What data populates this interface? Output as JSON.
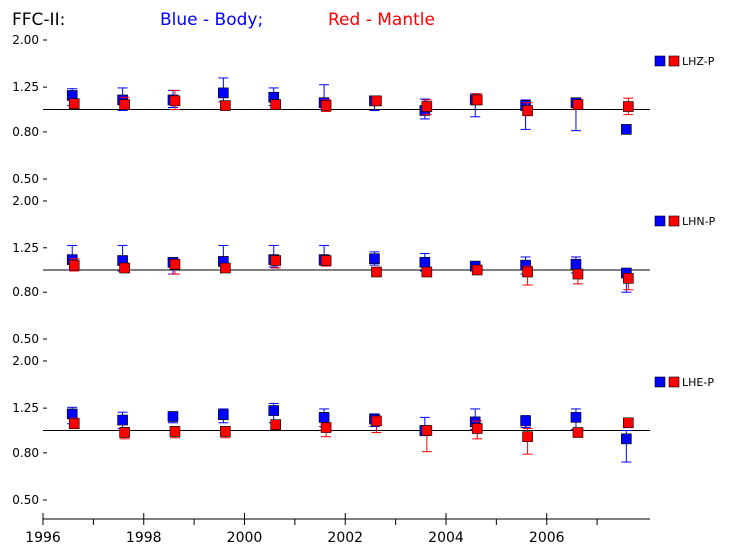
{
  "title": {
    "prefix": "FFC-II:",
    "blue_text": "Blue  -  Body;",
    "red_text": "Red  -  Mantle"
  },
  "colors": {
    "blue": "#0000ff",
    "red": "#ff0000",
    "line": "#000000"
  },
  "chart_data": [
    {
      "type": "scatter",
      "legend_label": "LHZ-P",
      "y_ticks": [
        "2.00",
        "1.25",
        "0.80",
        "0.50"
      ],
      "y_tick_values": [
        2.0,
        1.25,
        0.8,
        0.5
      ],
      "ylim": [
        0.45,
        2.1
      ],
      "log_scale": true,
      "reference": 1.0,
      "series": [
        {
          "name": "Body",
          "color": "blue",
          "points": [
            {
              "x": 1996.6,
              "y": 1.15,
              "lo": 1.04,
              "hi": 1.23
            },
            {
              "x": 1997.6,
              "y": 1.1,
              "lo": 0.99,
              "hi": 1.24
            },
            {
              "x": 1998.6,
              "y": 1.1,
              "lo": 1.02,
              "hi": 1.21
            },
            {
              "x": 1999.6,
              "y": 1.18,
              "lo": 1.08,
              "hi": 1.37
            },
            {
              "x": 2000.6,
              "y": 1.13,
              "lo": 1.04,
              "hi": 1.24
            },
            {
              "x": 2001.6,
              "y": 1.07,
              "lo": 1.0,
              "hi": 1.28
            },
            {
              "x": 2002.6,
              "y": 1.09,
              "lo": 0.99,
              "hi": 1.12
            },
            {
              "x": 2003.6,
              "y": 0.99,
              "lo": 0.91,
              "hi": 1.11
            },
            {
              "x": 2004.6,
              "y": 1.1,
              "lo": 0.93,
              "hi": 1.17
            },
            {
              "x": 2005.6,
              "y": 1.04,
              "lo": 0.82,
              "hi": 1.1
            },
            {
              "x": 2006.6,
              "y": 1.07,
              "lo": 0.81,
              "hi": 1.11
            },
            {
              "x": 2007.6,
              "y": 0.82,
              "lo": 0.8,
              "hi": 0.84
            }
          ]
        },
        {
          "name": "Mantle",
          "color": "red",
          "points": [
            {
              "x": 1996.6,
              "y": 1.06,
              "lo": 1.03,
              "hi": 1.1
            },
            {
              "x": 1997.6,
              "y": 1.05,
              "lo": 1.01,
              "hi": 1.13
            },
            {
              "x": 1998.6,
              "y": 1.09,
              "lo": 1.0,
              "hi": 1.21
            },
            {
              "x": 1999.6,
              "y": 1.04,
              "lo": 1.02,
              "hi": 1.07
            },
            {
              "x": 2000.6,
              "y": 1.05,
              "lo": 1.02,
              "hi": 1.1
            },
            {
              "x": 2001.6,
              "y": 1.04,
              "lo": 0.98,
              "hi": 1.1
            },
            {
              "x": 2002.6,
              "y": 1.09,
              "lo": 1.05,
              "hi": 1.12
            },
            {
              "x": 2003.6,
              "y": 1.03,
              "lo": 0.95,
              "hi": 1.1
            },
            {
              "x": 2004.6,
              "y": 1.1,
              "lo": 1.05,
              "hi": 1.17
            },
            {
              "x": 2005.6,
              "y": 0.99,
              "lo": 0.94,
              "hi": 1.07
            },
            {
              "x": 2006.6,
              "y": 1.05,
              "lo": 1.0,
              "hi": 1.1
            },
            {
              "x": 2007.6,
              "y": 1.03,
              "lo": 0.95,
              "hi": 1.12
            }
          ]
        }
      ]
    },
    {
      "type": "scatter",
      "legend_label": "LHN-P",
      "y_ticks": [
        "2.00",
        "1.25",
        "0.80",
        "0.50"
      ],
      "y_tick_values": [
        2.0,
        1.25,
        0.8,
        0.5
      ],
      "ylim": [
        0.45,
        2.1
      ],
      "log_scale": true,
      "reference": 1.0,
      "series": [
        {
          "name": "Body",
          "color": "blue",
          "points": [
            {
              "x": 1996.6,
              "y": 1.11,
              "lo": 1.0,
              "hi": 1.28
            },
            {
              "x": 1997.6,
              "y": 1.1,
              "lo": 0.99,
              "hi": 1.28
            },
            {
              "x": 1998.6,
              "y": 1.08,
              "lo": 0.96,
              "hi": 1.11
            },
            {
              "x": 1999.6,
              "y": 1.09,
              "lo": 1.0,
              "hi": 1.28
            },
            {
              "x": 2000.6,
              "y": 1.11,
              "lo": 1.03,
              "hi": 1.28
            },
            {
              "x": 2001.6,
              "y": 1.11,
              "lo": 1.05,
              "hi": 1.28
            },
            {
              "x": 2002.6,
              "y": 1.12,
              "lo": 1.05,
              "hi": 1.2
            },
            {
              "x": 2003.6,
              "y": 1.08,
              "lo": 0.99,
              "hi": 1.18
            },
            {
              "x": 2004.6,
              "y": 1.04,
              "lo": 1.01,
              "hi": 1.07
            },
            {
              "x": 2005.6,
              "y": 1.05,
              "lo": 0.96,
              "hi": 1.14
            },
            {
              "x": 2006.6,
              "y": 1.06,
              "lo": 0.97,
              "hi": 1.14
            },
            {
              "x": 2007.6,
              "y": 0.97,
              "lo": 0.8,
              "hi": 0.99
            }
          ]
        },
        {
          "name": "Mantle",
          "color": "red",
          "points": [
            {
              "x": 1996.6,
              "y": 1.05,
              "lo": 0.99,
              "hi": 1.12
            },
            {
              "x": 1997.6,
              "y": 1.02,
              "lo": 0.98,
              "hi": 1.07
            },
            {
              "x": 1998.6,
              "y": 1.06,
              "lo": 0.96,
              "hi": 1.1
            },
            {
              "x": 1999.6,
              "y": 1.02,
              "lo": 0.98,
              "hi": 1.05
            },
            {
              "x": 2000.6,
              "y": 1.1,
              "lo": 1.02,
              "hi": 1.12
            },
            {
              "x": 2001.6,
              "y": 1.1,
              "lo": 1.04,
              "hi": 1.13
            },
            {
              "x": 2002.6,
              "y": 0.98,
              "lo": 0.95,
              "hi": 1.0
            },
            {
              "x": 2003.6,
              "y": 0.98,
              "lo": 0.95,
              "hi": 1.0
            },
            {
              "x": 2004.6,
              "y": 1.0,
              "lo": 0.97,
              "hi": 1.02
            },
            {
              "x": 2005.6,
              "y": 0.98,
              "lo": 0.86,
              "hi": 1.04
            },
            {
              "x": 2006.6,
              "y": 0.96,
              "lo": 0.87,
              "hi": 1.0
            },
            {
              "x": 2007.6,
              "y": 0.92,
              "lo": 0.82,
              "hi": 0.95
            }
          ]
        }
      ]
    },
    {
      "type": "scatter",
      "legend_label": "LHE-P",
      "y_ticks": [
        "2.00",
        "1.25",
        "0.80",
        "0.50"
      ],
      "y_tick_values": [
        2.0,
        1.25,
        0.8,
        0.5
      ],
      "ylim": [
        0.45,
        2.1
      ],
      "log_scale": true,
      "reference": 1.0,
      "x_ticks": [
        "1996",
        "1998",
        "2000",
        "2002",
        "2004",
        "2006"
      ],
      "x_tick_values": [
        1996,
        1998,
        2000,
        2002,
        2004,
        2006
      ],
      "x_minor_ticks": [
        1997,
        1999,
        2001,
        2003,
        2005,
        2007
      ],
      "xlim": [
        1996,
        2008.05
      ],
      "series": [
        {
          "name": "Body",
          "color": "blue",
          "points": [
            {
              "x": 1996.6,
              "y": 1.18,
              "lo": 1.07,
              "hi": 1.26
            },
            {
              "x": 1997.6,
              "y": 1.11,
              "lo": 1.02,
              "hi": 1.2
            },
            {
              "x": 1998.6,
              "y": 1.15,
              "lo": 1.08,
              "hi": 1.19
            },
            {
              "x": 1999.6,
              "y": 1.17,
              "lo": 1.08,
              "hi": 1.24
            },
            {
              "x": 2000.6,
              "y": 1.22,
              "lo": 1.08,
              "hi": 1.31
            },
            {
              "x": 2001.6,
              "y": 1.14,
              "lo": 1.04,
              "hi": 1.24
            },
            {
              "x": 2002.6,
              "y": 1.12,
              "lo": 1.04,
              "hi": 1.18
            },
            {
              "x": 2003.6,
              "y": 1.0,
              "lo": 0.95,
              "hi": 1.14
            },
            {
              "x": 2004.6,
              "y": 1.09,
              "lo": 1.01,
              "hi": 1.24
            },
            {
              "x": 2005.6,
              "y": 1.1,
              "lo": 1.03,
              "hi": 1.16
            },
            {
              "x": 2006.6,
              "y": 1.14,
              "lo": 1.01,
              "hi": 1.24
            },
            {
              "x": 2007.6,
              "y": 0.92,
              "lo": 0.73,
              "hi": 1.0
            }
          ]
        },
        {
          "name": "Mantle",
          "color": "red",
          "points": [
            {
              "x": 1996.6,
              "y": 1.07,
              "lo": 1.03,
              "hi": 1.13
            },
            {
              "x": 1997.6,
              "y": 0.98,
              "lo": 0.92,
              "hi": 1.03
            },
            {
              "x": 1998.6,
              "y": 0.99,
              "lo": 0.93,
              "hi": 1.04
            },
            {
              "x": 1999.6,
              "y": 0.99,
              "lo": 0.93,
              "hi": 1.04
            },
            {
              "x": 2000.6,
              "y": 1.06,
              "lo": 1.03,
              "hi": 1.09
            },
            {
              "x": 2001.6,
              "y": 1.03,
              "lo": 0.94,
              "hi": 1.07
            },
            {
              "x": 2002.6,
              "y": 1.1,
              "lo": 0.98,
              "hi": 1.12
            },
            {
              "x": 2003.6,
              "y": 1.0,
              "lo": 0.81,
              "hi": 1.03
            },
            {
              "x": 2004.6,
              "y": 1.02,
              "lo": 0.92,
              "hi": 1.1
            },
            {
              "x": 2005.6,
              "y": 0.94,
              "lo": 0.79,
              "hi": 1.02
            },
            {
              "x": 2006.6,
              "y": 0.98,
              "lo": 0.94,
              "hi": 1.02
            },
            {
              "x": 2007.6,
              "y": 1.08,
              "lo": 1.05,
              "hi": 1.1
            }
          ]
        }
      ]
    }
  ]
}
